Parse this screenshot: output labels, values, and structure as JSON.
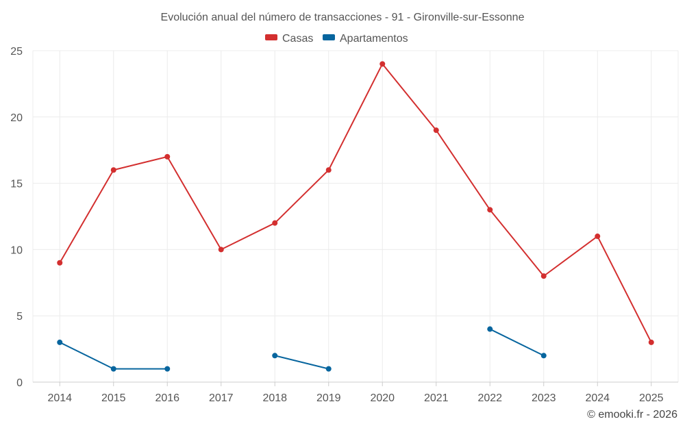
{
  "chart_data": {
    "type": "line",
    "title": "Evolución anual del número de transacciones - 91 - Gironville-sur-Essonne",
    "categories": [
      "2014",
      "2015",
      "2016",
      "2017",
      "2018",
      "2019",
      "2020",
      "2021",
      "2022",
      "2023",
      "2024",
      "2025"
    ],
    "ylim": [
      0,
      25
    ],
    "yticks": [
      0,
      5,
      10,
      15,
      20,
      25
    ],
    "grid": true,
    "legend_position": "top-center",
    "series": [
      {
        "name": "Casas",
        "color": "#d32f2f",
        "values": [
          9,
          16,
          17,
          10,
          12,
          16,
          24,
          19,
          13,
          8,
          11,
          3
        ]
      },
      {
        "name": "Apartamentos",
        "color": "#07659e",
        "values": [
          3,
          1,
          1,
          null,
          2,
          1,
          null,
          null,
          4,
          2,
          null,
          null
        ]
      }
    ]
  },
  "credit": "© emooki.fr - 2026"
}
